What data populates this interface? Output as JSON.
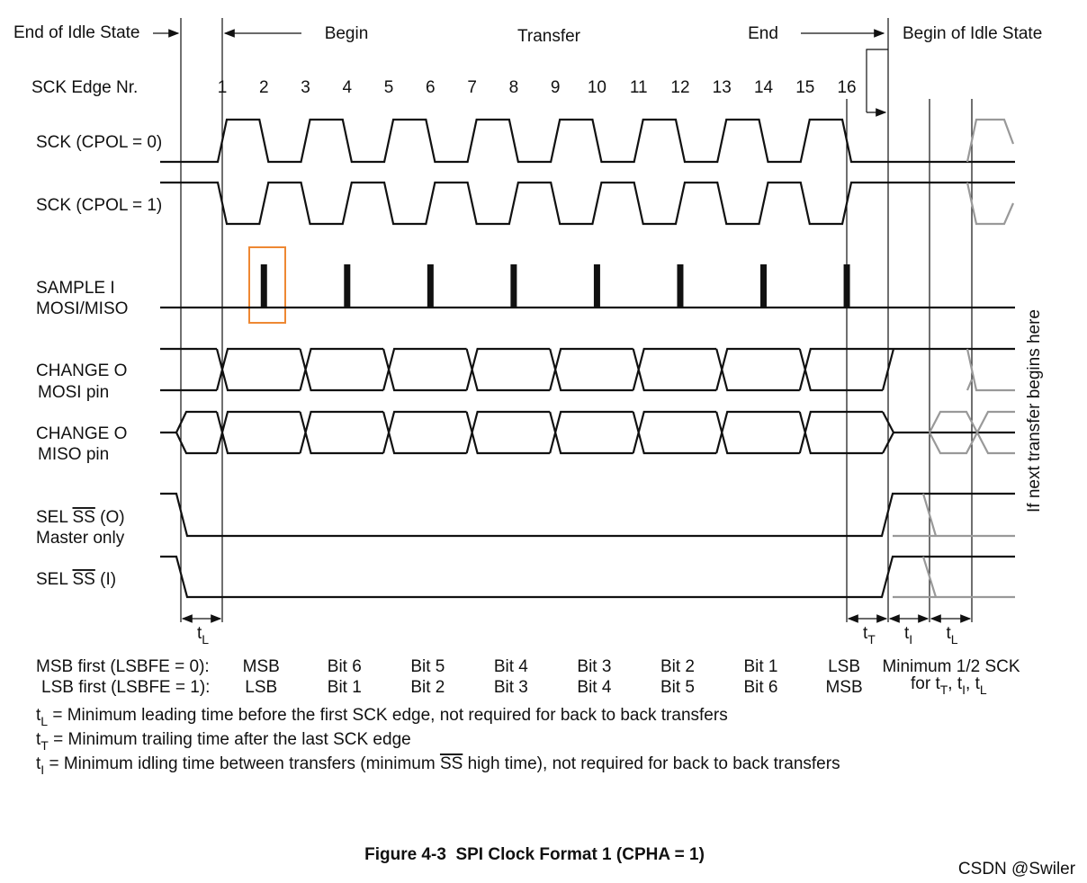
{
  "header": {
    "end_of_idle": "End of Idle State",
    "begin": "Begin",
    "transfer": "Transfer",
    "end": "End",
    "begin_of_idle": "Begin of Idle State"
  },
  "edge_title": "SCK Edge Nr.",
  "edges": [
    "1",
    "2",
    "3",
    "4",
    "5",
    "6",
    "7",
    "8",
    "9",
    "10",
    "11",
    "12",
    "13",
    "14",
    "15",
    "16"
  ],
  "signals": {
    "sck0": "SCK (CPOL = 0)",
    "sck1": "SCK (CPOL = 1)",
    "sample": [
      "SAMPLE I",
      "MOSI/MISO"
    ],
    "mosi": [
      "CHANGE O",
      "MOSI pin"
    ],
    "miso": [
      "CHANGE O",
      "MISO pin"
    ],
    "sel_o": {
      "pre": "SEL ",
      "bar": "SS",
      "post": " (O)",
      "line2": "Master only"
    },
    "sel_i": {
      "pre": "SEL ",
      "bar": "SS",
      "post": " (I)"
    }
  },
  "side_note": "If next transfer begins here",
  "timing": [
    {
      "t": "t",
      "sub": "L"
    },
    {
      "t": "t",
      "sub": "T"
    },
    {
      "t": "t",
      "sub": "I"
    },
    {
      "t": "t",
      "sub": "L"
    }
  ],
  "bit_order": [
    {
      "label": "MSB first (LSBFE = 0):",
      "bits": [
        "MSB",
        "Bit 6",
        "Bit 5",
        "Bit 4",
        "Bit 3",
        "Bit 2",
        "Bit 1",
        "LSB"
      ]
    },
    {
      "label": "LSB first (LSBFE = 1):",
      "bits": [
        "LSB",
        "Bit 1",
        "Bit 2",
        "Bit 3",
        "Bit 4",
        "Bit 5",
        "Bit 6",
        "MSB"
      ]
    }
  ],
  "min_note": {
    "line1": "Minimum 1/2 SCK",
    "parts": [
      {
        "text": "for t",
        "sub": "T"
      },
      {
        "text": ", t",
        "sub": "I"
      },
      {
        "text": ", t",
        "sub": "L"
      }
    ]
  },
  "notes": [
    {
      "t": "t",
      "sub": "L",
      "text": " = Minimum leading time before the first SCK edge, not required for back to back transfers"
    },
    {
      "t": "t",
      "sub": "T",
      "text": " = Minimum trailing time after the last SCK edge"
    },
    {
      "t": "t",
      "sub": "I",
      "text": " = Minimum idling time between transfers (minimum ",
      "bar": "SS",
      "rest": " high time), not required for back to back transfers"
    }
  ],
  "caption": "Figure 4-3  SPI Clock Format 1 (CPHA = 1)",
  "watermark": "CSDN @Swiler"
}
